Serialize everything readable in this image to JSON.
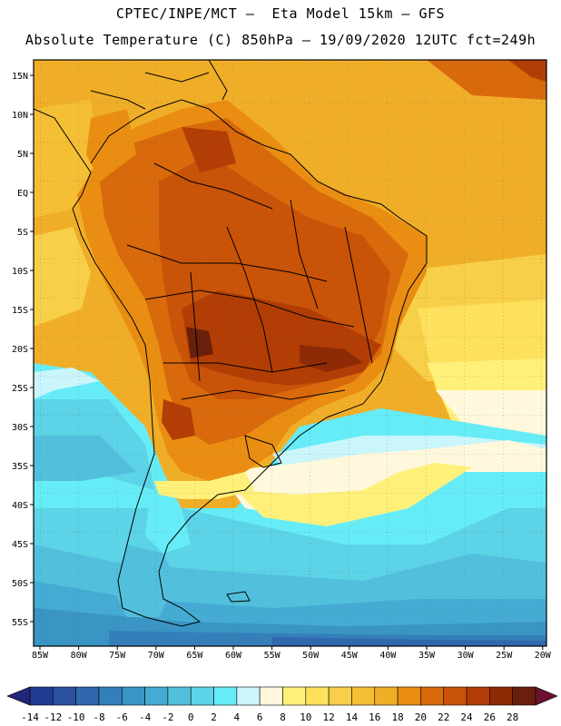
{
  "header": {
    "line1": "CPTEC/INPE/MCT —  Eta Model 15km — GFS",
    "line2": "Absolute Temperature (C) 850hPa — 19/09/2020 12UTC fct=249h"
  },
  "lat_labels": [
    "15N",
    "10N",
    "5N",
    "EQ",
    "5S",
    "10S",
    "15S",
    "20S",
    "25S",
    "30S",
    "35S",
    "40S",
    "45S",
    "50S",
    "55S"
  ],
  "lon_labels": [
    "85W",
    "80W",
    "75W",
    "70W",
    "65W",
    "60W",
    "55W",
    "50W",
    "45W",
    "40W",
    "35W",
    "30W",
    "25W",
    "20W"
  ],
  "colorbar": {
    "labels": [
      "-14",
      "-12",
      "-10",
      "-8",
      "-6",
      "-4",
      "-2",
      "0",
      "2",
      "4",
      "6",
      "8",
      "10",
      "12",
      "14",
      "16",
      "18",
      "20",
      "22",
      "24",
      "26",
      "28"
    ],
    "colors": [
      "#1f3b8f",
      "#2a51a0",
      "#2f68ad",
      "#347fb9",
      "#3a95c4",
      "#45abd3",
      "#52c0dd",
      "#5cd3e6",
      "#66ecf7",
      "#c9f5fb",
      "#fff8dc",
      "#fff07a",
      "#fde05c",
      "#f8cf48",
      "#f4be35",
      "#f0ae28",
      "#e98e12",
      "#d96a0c",
      "#c95308",
      "#b23e05",
      "#8e2a05",
      "#6a1f0a"
    ],
    "left_arrow": "#22277a",
    "right_arrow": "#6b1030"
  },
  "colors": {
    "ocean_warm": "#f0ae28",
    "land_hot": "#c95308",
    "frame": "#000000"
  }
}
